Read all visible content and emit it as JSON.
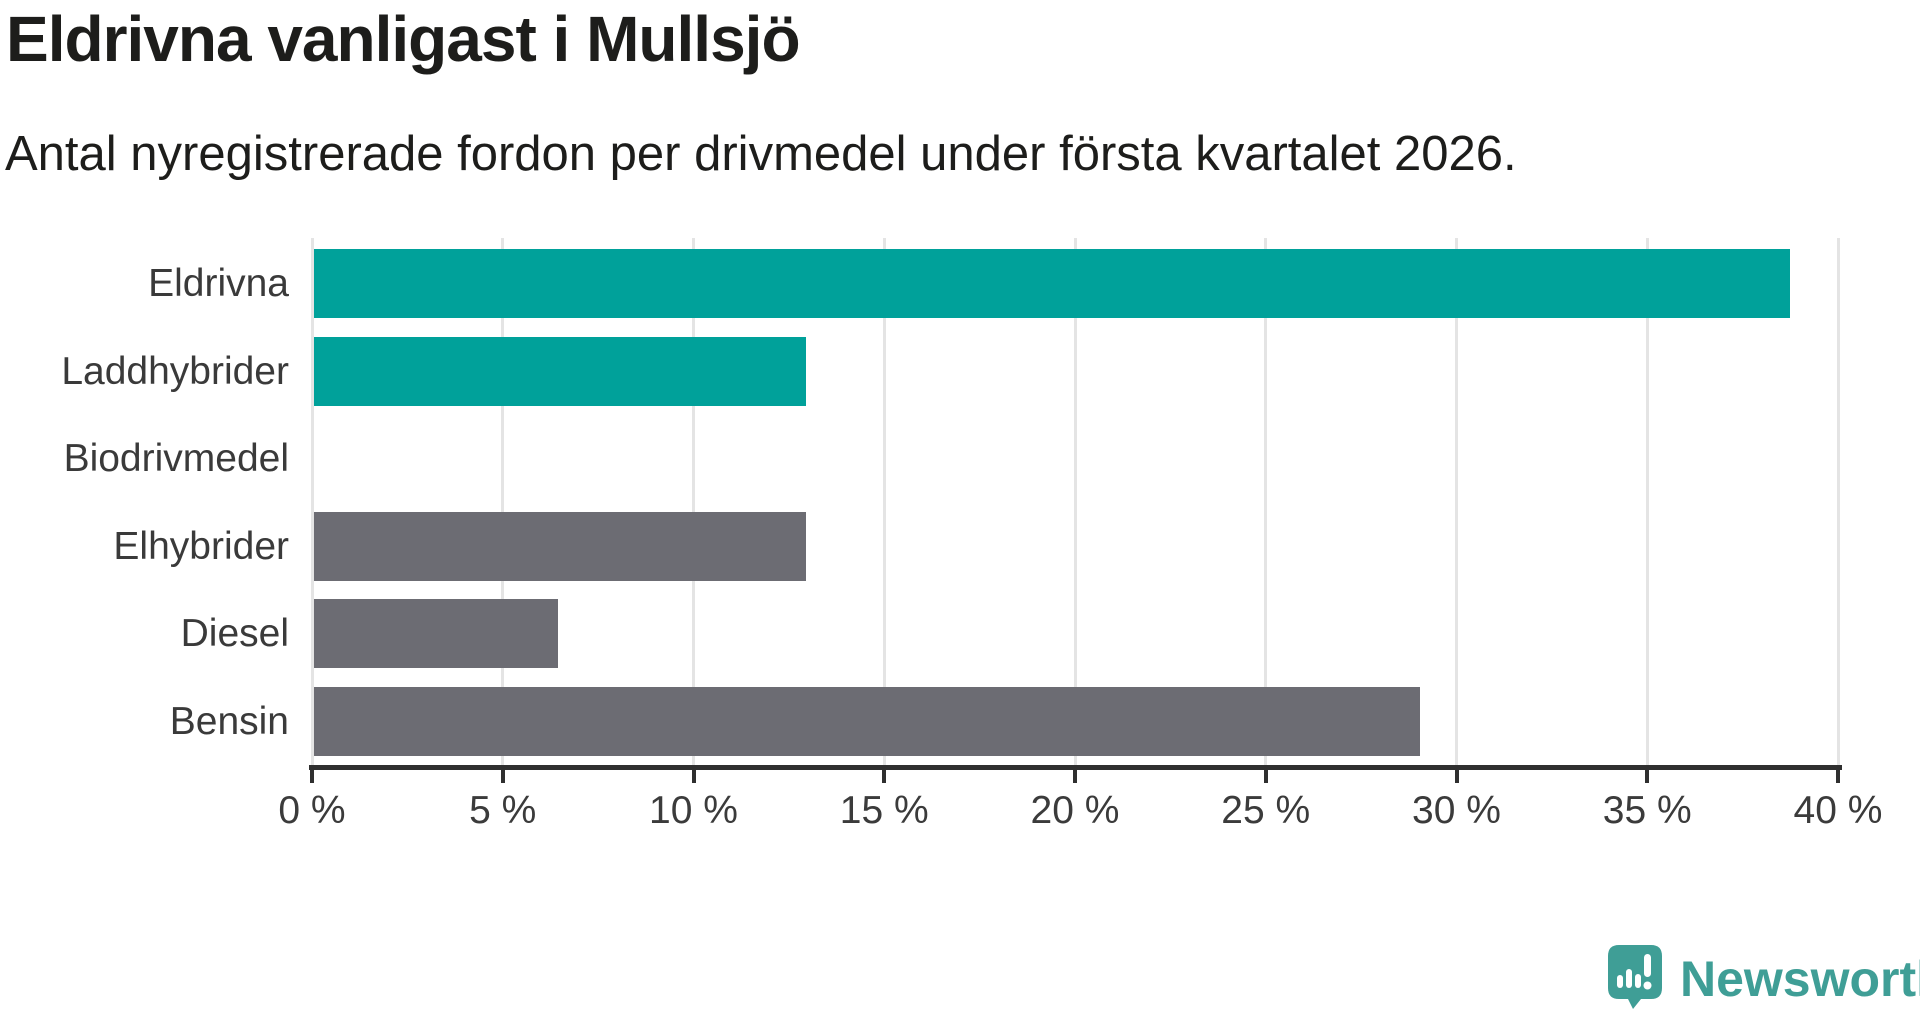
{
  "title": "Eldrivna vanligast i Mullsjö",
  "subtitle": "Antal nyregistrerade fordon per drivmedel under första kvartalet 2026.",
  "chart_data": {
    "type": "bar",
    "orientation": "horizontal",
    "title": "Eldrivna vanligast i Mullsjö",
    "subtitle": "Antal nyregistrerade fordon per drivmedel under första kvartalet 2026.",
    "categories": [
      "Eldrivna",
      "Laddhybrider",
      "Biodrivmedel",
      "Elhybrider",
      "Diesel",
      "Bensin"
    ],
    "values": [
      38.7,
      12.9,
      0,
      12.9,
      6.4,
      29.0
    ],
    "unit": "%",
    "xlim": [
      0,
      40
    ],
    "x_ticks": [
      0,
      5,
      10,
      15,
      20,
      25,
      30,
      35,
      40
    ],
    "x_tick_labels": [
      "0 %",
      "5 %",
      "10 %",
      "15 %",
      "20 %",
      "25 %",
      "30 %",
      "35 %",
      "40 %"
    ],
    "grid": true,
    "legend": "none",
    "bar_colors": [
      "#00a19a",
      "#00a19a",
      "#00a19a",
      "#6c6c73",
      "#6c6c73",
      "#6c6c73"
    ],
    "highlight_color": "#00a19a",
    "default_color": "#6c6c73",
    "gridline_color": "#e4e4e4",
    "axis_color": "#2f2f2f",
    "text_color": "#3a3a3a"
  },
  "branding": {
    "logo_text": "Newsworthy",
    "logo_color": "#3f9e96",
    "logo_icon": "newsworthy-speech-bubble-chart-icon"
  }
}
